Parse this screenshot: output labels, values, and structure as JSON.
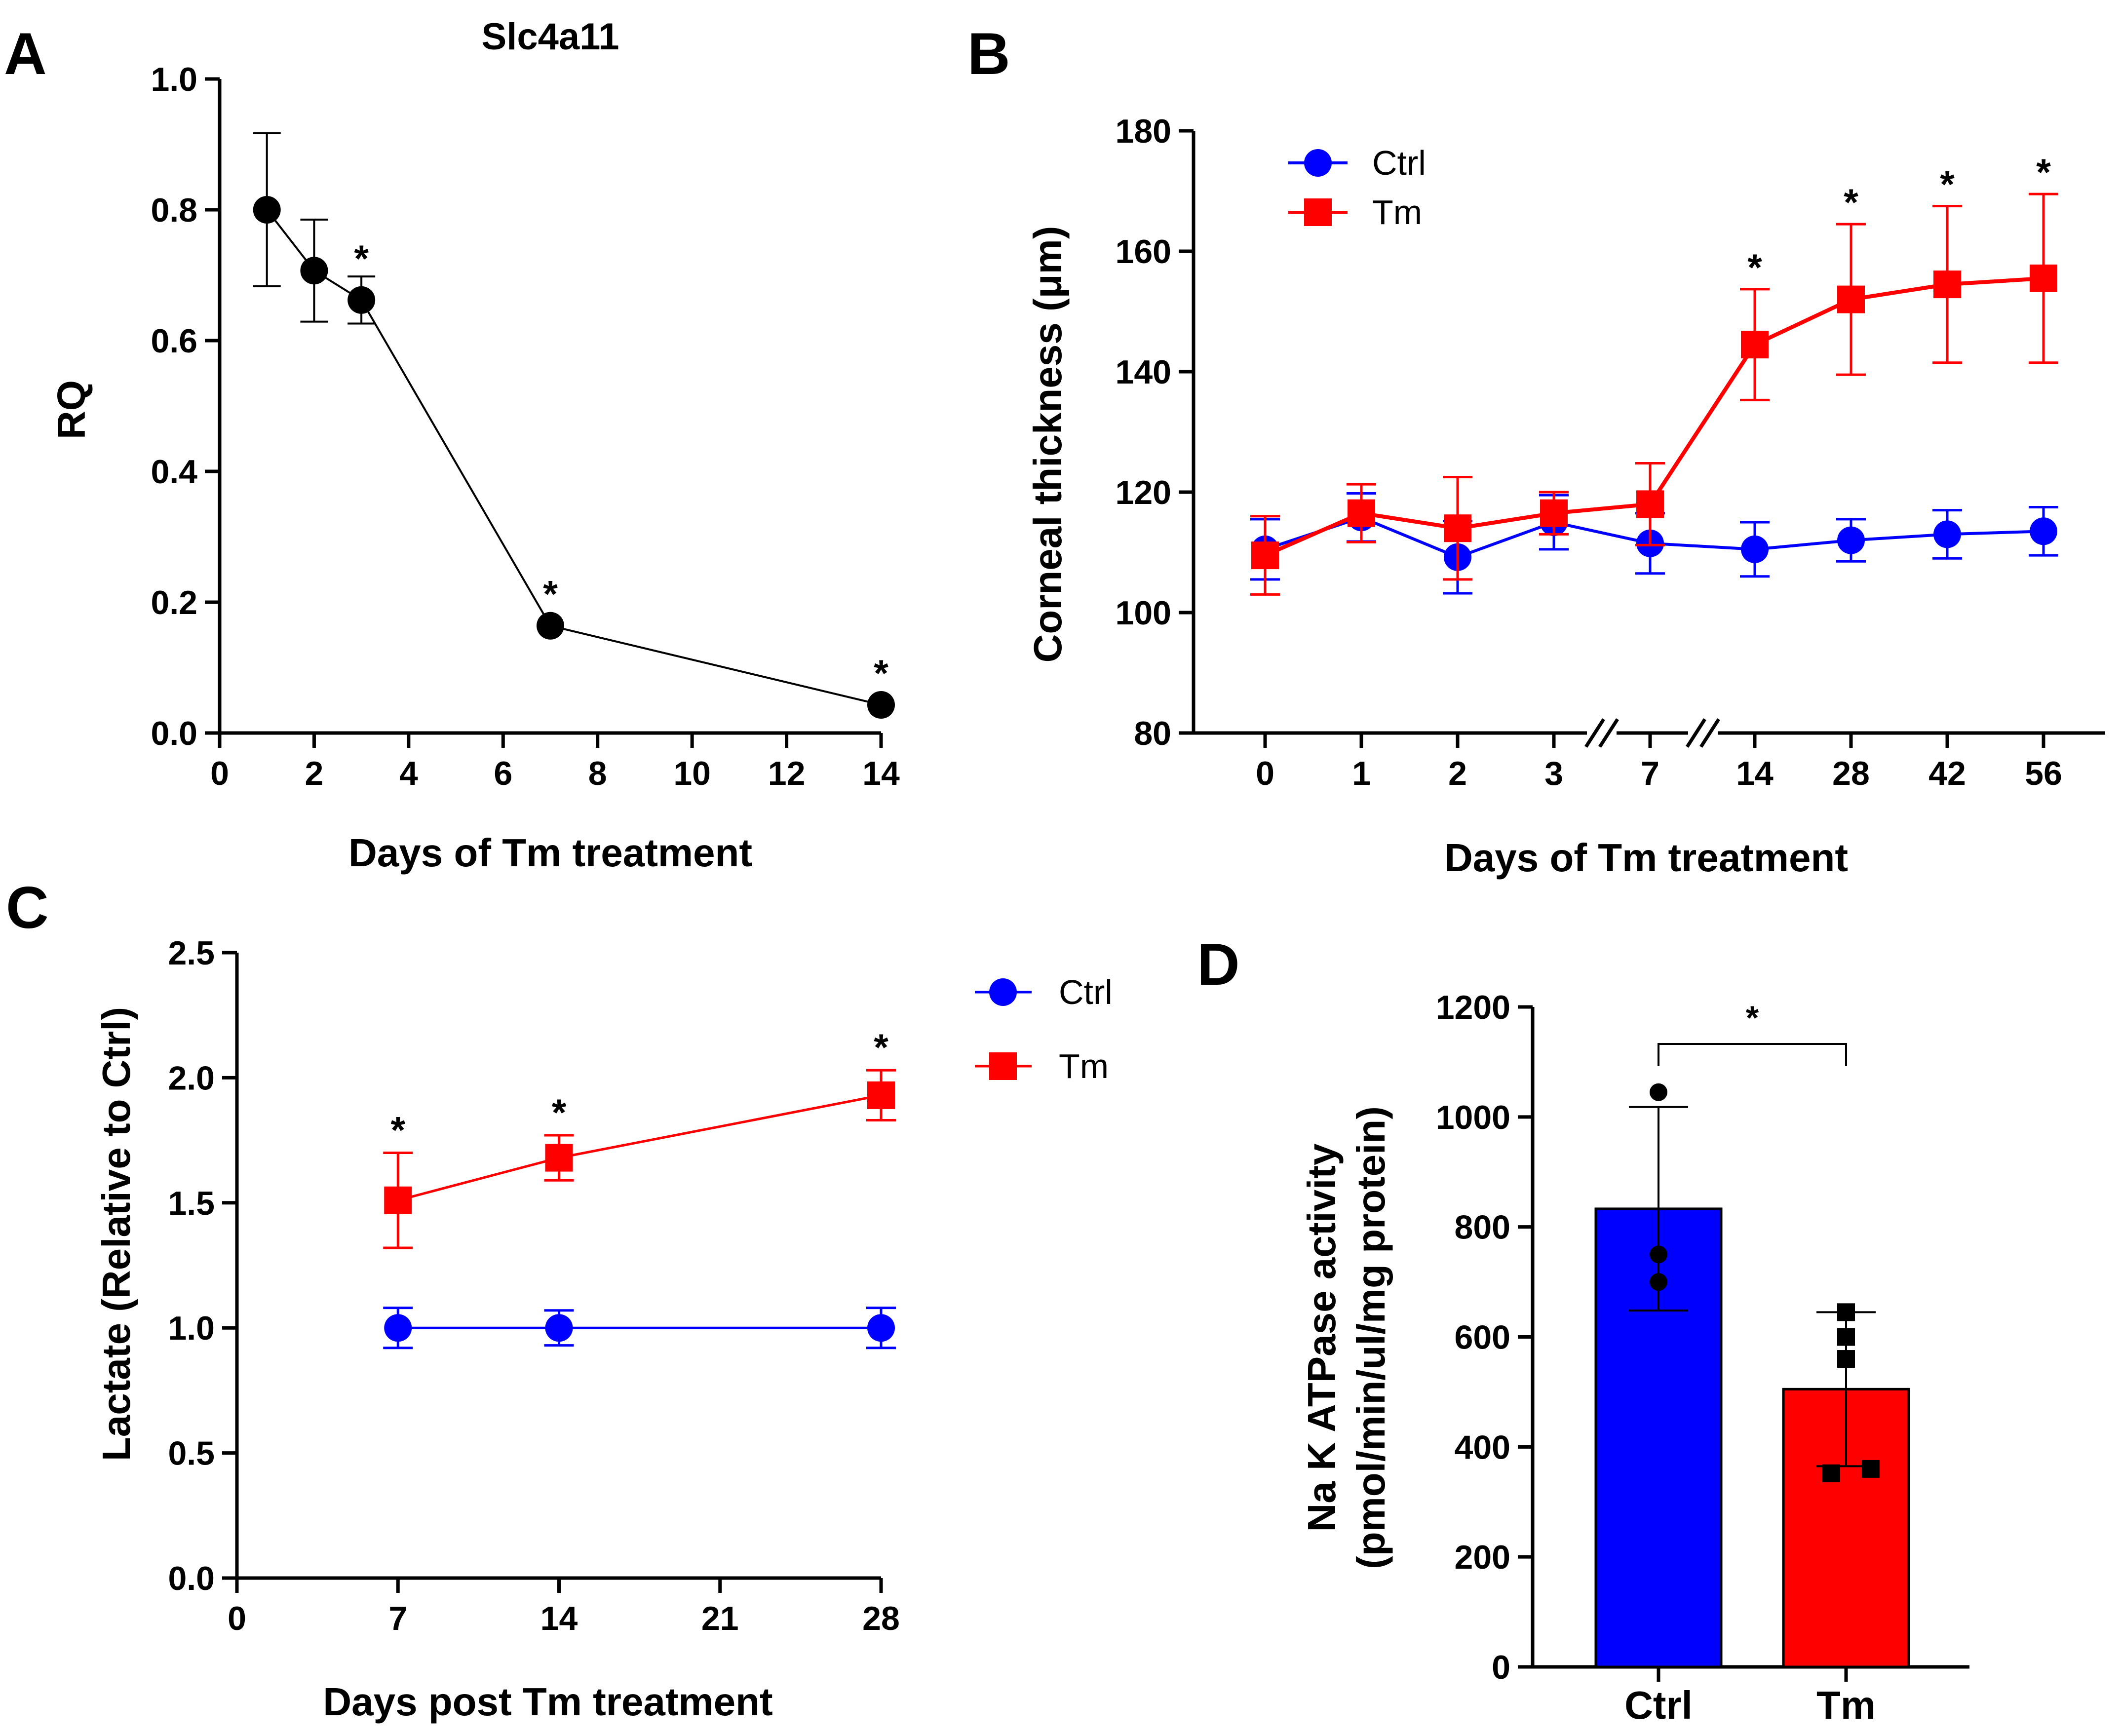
{
  "chart_data": [
    {
      "panel": "A",
      "type": "line",
      "title": "Slc4a11",
      "xlabel": "Days of Tm treatment",
      "ylabel": "RQ",
      "xlim": [
        0,
        14
      ],
      "ylim": [
        0,
        1.0
      ],
      "x_ticks": [
        "0",
        "2",
        "4",
        "6",
        "8",
        "10",
        "12",
        "14"
      ],
      "y_ticks": [
        "0.0",
        "0.2",
        "0.4",
        "0.6",
        "0.8",
        "1.0"
      ],
      "color": "#000000",
      "series": [
        {
          "points": [
            {
              "x": 1,
              "y": 0.8,
              "err": 0.117,
              "sig": ""
            },
            {
              "x": 2,
              "y": 0.707,
              "err": 0.078,
              "sig": ""
            },
            {
              "x": 3,
              "y": 0.662,
              "err": 0.036,
              "sig": "*"
            },
            {
              "x": 7,
              "y": 0.164,
              "err": 0.0,
              "sig": "*"
            },
            {
              "x": 14,
              "y": 0.043,
              "err": 0.0,
              "sig": "*"
            }
          ]
        }
      ]
    },
    {
      "panel": "B",
      "type": "line",
      "xlabel": "Days of Tm treatment",
      "ylabel": "Corneal thickness (μm)",
      "categories": [
        "0",
        "1",
        "2",
        "3",
        "7",
        "14",
        "28",
        "42",
        "56"
      ],
      "axis_breaks_after": [
        "3",
        "7"
      ],
      "ylim": [
        80,
        180
      ],
      "y_ticks": [
        "80",
        "100",
        "120",
        "140",
        "160",
        "180"
      ],
      "legend_position": "top-left",
      "series": [
        {
          "name": "Ctrl",
          "color": "#0000ff",
          "marker": "circle",
          "values": [
            110.5,
            115.8,
            109.2,
            115.0,
            111.5,
            110.5,
            112.0,
            113.0,
            113.5
          ],
          "errors": [
            5,
            4,
            6,
            4.5,
            5,
            4.5,
            3.5,
            4,
            4
          ],
          "sig": [
            "",
            "",
            "",
            "",
            "",
            "",
            "",
            "",
            ""
          ]
        },
        {
          "name": "Tm",
          "color": "#ff0000",
          "marker": "square",
          "values": [
            109.5,
            116.5,
            114.0,
            116.5,
            118.0,
            144.5,
            152.0,
            154.5,
            155.5
          ],
          "errors": [
            6.5,
            4.8,
            8.5,
            3.5,
            6.8,
            9.2,
            12.5,
            13,
            14
          ],
          "sig": [
            "",
            "",
            "",
            "",
            "",
            "*",
            "*",
            "*",
            "*"
          ]
        }
      ]
    },
    {
      "panel": "C",
      "type": "line",
      "xlabel": "Days post Tm treatment",
      "ylabel": "Lactate (Relative to Ctrl)",
      "xlim": [
        0,
        28
      ],
      "ylim": [
        0,
        2.5
      ],
      "x_ticks": [
        "0",
        "7",
        "14",
        "21",
        "28"
      ],
      "y_ticks": [
        "0.0",
        "0.5",
        "1.0",
        "1.5",
        "2.0",
        "2.5"
      ],
      "legend_position": "right",
      "series": [
        {
          "name": "Ctrl",
          "color": "#0000ff",
          "marker": "circle",
          "x": [
            7,
            14,
            28
          ],
          "values": [
            1.0,
            1.0,
            1.0
          ],
          "errors": [
            0.08,
            0.07,
            0.08
          ],
          "sig": [
            "",
            "",
            ""
          ]
        },
        {
          "name": "Tm",
          "color": "#ff0000",
          "marker": "square",
          "x": [
            7,
            14,
            28
          ],
          "values": [
            1.51,
            1.68,
            1.93
          ],
          "errors": [
            0.19,
            0.09,
            0.1
          ],
          "sig": [
            "*",
            "*",
            "*"
          ]
        }
      ]
    },
    {
      "panel": "D",
      "type": "bar",
      "xlabel": "",
      "ylabel_lines": [
        "Na K ATPase activity",
        "(pmol/min/ul/mg protein)"
      ],
      "categories": [
        "Ctrl",
        "Tm"
      ],
      "values": [
        833,
        505
      ],
      "errors": [
        185,
        140
      ],
      "colors": [
        "#0000ff",
        "#ff0000"
      ],
      "ylim": [
        0,
        1200
      ],
      "y_ticks": [
        "0",
        "200",
        "400",
        "600",
        "800",
        "1000",
        "1200"
      ],
      "points": [
        [
          1045,
          750,
          700
        ],
        [
          645,
          600,
          560,
          360,
          352
        ]
      ],
      "point_markers": [
        "circle",
        "square"
      ],
      "comparison": {
        "from": "Ctrl",
        "to": "Tm",
        "label": "*"
      }
    }
  ]
}
